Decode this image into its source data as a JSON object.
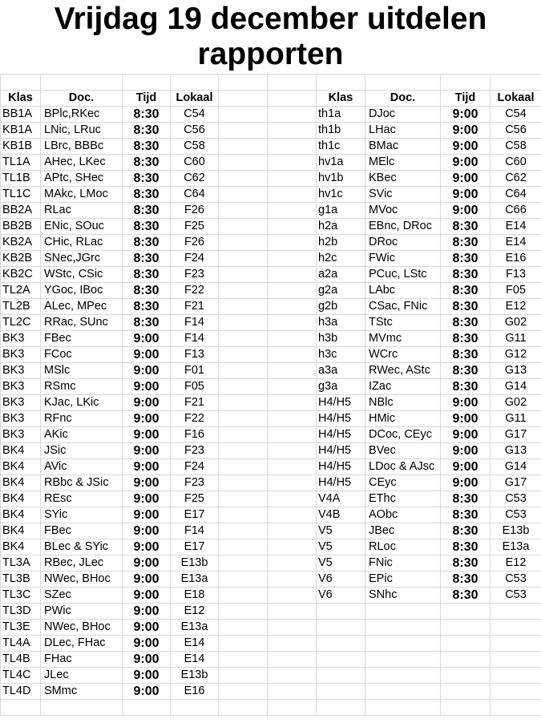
{
  "title": "Vrijdag 19 december uitdelen rapporten",
  "title_line1": "Vrijdag 19 december uitdelen",
  "title_line2": "rapporten",
  "headers": {
    "klas": "Klas",
    "doc": "Doc.",
    "tijd": "Tijd",
    "lokaal": "Lokaal"
  },
  "left_table": [
    [
      "BB1A",
      "BPlc,RKec",
      "8:30",
      "C54"
    ],
    [
      "KB1A",
      "LNic, LRuc",
      "8:30",
      "C56"
    ],
    [
      "KB1B",
      "LBrc, BBBc",
      "8:30",
      "C58"
    ],
    [
      "TL1A",
      "AHec, LKec",
      "8:30",
      "C60"
    ],
    [
      "TL1B",
      "APtc, SHec",
      "8:30",
      "C62"
    ],
    [
      "TL1C",
      "MAkc, LMoc",
      "8:30",
      "C64"
    ],
    [
      "BB2A",
      "RLac",
      "8:30",
      "F26"
    ],
    [
      "BB2B",
      "ENic, SOuc",
      "8:30",
      "F25"
    ],
    [
      "KB2A",
      "CHic, RLac",
      "8:30",
      "F26"
    ],
    [
      "KB2B",
      "SNec,JGrc",
      "8:30",
      "F24"
    ],
    [
      "KB2C",
      "WStc, CSic",
      "8:30",
      "F23"
    ],
    [
      "TL2A",
      "YGoc, IBoc",
      "8:30",
      "F22"
    ],
    [
      "TL2B",
      "ALec, MPec",
      "8:30",
      "F21"
    ],
    [
      "TL2C",
      "RRac, SUnc",
      "8:30",
      "F14"
    ],
    [
      "BK3",
      "FBec",
      "9:00",
      "F14"
    ],
    [
      "BK3",
      "FCoc",
      "9:00",
      "F13"
    ],
    [
      "BK3",
      "MSlc",
      "9:00",
      "F01"
    ],
    [
      "BK3",
      "RSmc",
      "9:00",
      "F05"
    ],
    [
      "BK3",
      "KJac, LKic",
      "9:00",
      "F21"
    ],
    [
      "BK3",
      "RFnc",
      "9:00",
      "F22"
    ],
    [
      "BK3",
      "AKic",
      "9:00",
      "F16"
    ],
    [
      "BK4",
      "JSic",
      "9:00",
      "F23"
    ],
    [
      "BK4",
      "AVic",
      "9:00",
      "F24"
    ],
    [
      "BK4",
      "RBbc & JSic",
      "9:00",
      "F23"
    ],
    [
      "BK4",
      "REsc",
      "9:00",
      "F25"
    ],
    [
      "BK4",
      "SYic",
      "9:00",
      "E17"
    ],
    [
      "BK4",
      "FBec",
      "9:00",
      "F14"
    ],
    [
      "BK4",
      "BLec & SYic",
      "9:00",
      "E17"
    ],
    [
      "TL3A",
      "RBec, JLec",
      "9:00",
      "E13b"
    ],
    [
      "TL3B",
      "NWec, BHoc",
      "9:00",
      "E13a"
    ],
    [
      "TL3C",
      "SZec",
      "9:00",
      "E18"
    ],
    [
      "TL3D",
      "PWic",
      "9:00",
      "E12"
    ],
    [
      "TL3E",
      "NWec, BHoc",
      "9:00",
      "E13a"
    ],
    [
      "TL4A",
      "DLec, FHac",
      "9:00",
      "E14"
    ],
    [
      "TL4B",
      "FHac",
      "9:00",
      "E14"
    ],
    [
      "TL4C",
      "JLec",
      "9:00",
      "E13b"
    ],
    [
      "TL4D",
      "SMmc",
      "9:00",
      "E16"
    ]
  ],
  "right_table": [
    [
      "th1a",
      "DJoc",
      "9:00",
      "C54"
    ],
    [
      "th1b",
      "LHac",
      "9:00",
      "C56"
    ],
    [
      "th1c",
      "BMac",
      "9:00",
      "C58"
    ],
    [
      "hv1a",
      "MElc",
      "9:00",
      "C60"
    ],
    [
      "hv1b",
      "KBec",
      "9:00",
      "C62"
    ],
    [
      "hv1c",
      "SVic",
      "9:00",
      "C64"
    ],
    [
      "g1a",
      "MVoc",
      "9:00",
      "C66"
    ],
    [
      "h2a",
      "EBnc, DRoc",
      "8:30",
      "E14"
    ],
    [
      "h2b",
      "DRoc",
      "8:30",
      "E14"
    ],
    [
      "h2c",
      "FWic",
      "8:30",
      "E16"
    ],
    [
      "a2a",
      "PCuc, LStc",
      "8:30",
      "F13"
    ],
    [
      "g2a",
      "LAbc",
      "8:30",
      "F05"
    ],
    [
      "g2b",
      "CSac, FNic",
      "8:30",
      "E12"
    ],
    [
      "h3a",
      "TStc",
      "8:30",
      "G02"
    ],
    [
      "h3b",
      "MVmc",
      "8:30",
      "G11"
    ],
    [
      "h3c",
      "WCrc",
      "8:30",
      "G12"
    ],
    [
      "a3a",
      "RWec, AStc",
      "8:30",
      "G13"
    ],
    [
      "g3a",
      "IZac",
      "8:30",
      "G14"
    ],
    [
      "H4/H5",
      "NBlc",
      "9:00",
      "G02"
    ],
    [
      "H4/H5",
      "HMic",
      "9:00",
      "G11"
    ],
    [
      "H4/H5",
      "DCoc, CEyc",
      "9:00",
      "G17"
    ],
    [
      "H4/H5",
      "BVec",
      "9:00",
      "G13"
    ],
    [
      "H4/H5",
      "LDoc & AJsc",
      "9:00",
      "G14"
    ],
    [
      "H4/H5",
      "CEyc",
      "9:00",
      "G17"
    ],
    [
      "V4A",
      "EThc",
      "8:30",
      "C53"
    ],
    [
      "V4B",
      "AObc",
      "8:30",
      "C53"
    ],
    [
      "V5",
      "JBec",
      "8:30",
      "E13b"
    ],
    [
      "V5",
      "RLoc",
      "8:30",
      "E13a"
    ],
    [
      "V5",
      "FNic",
      "8:30",
      "E12"
    ],
    [
      "V6",
      "EPic",
      "8:30",
      "C53"
    ],
    [
      "V6",
      "SNhc",
      "8:30",
      "C53"
    ]
  ]
}
